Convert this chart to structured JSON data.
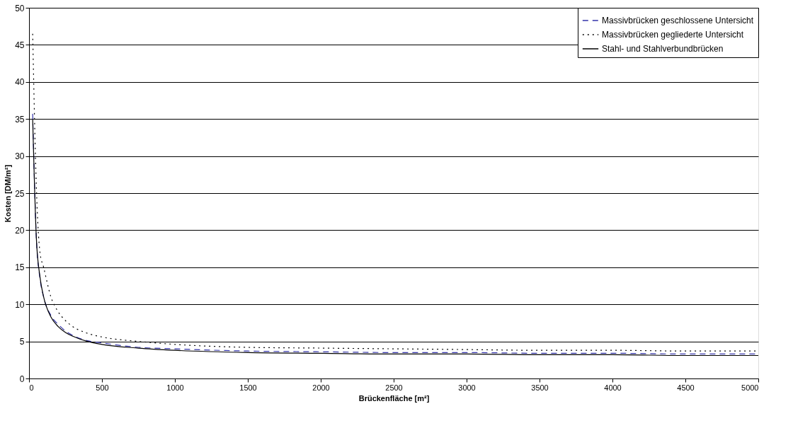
{
  "chart_data": {
    "type": "line",
    "xlabel": "Brückenfläche [m²]",
    "ylabel": "Kosten [DM/m²]",
    "x": [
      25,
      50,
      75,
      100,
      150,
      200,
      250,
      300,
      400,
      500,
      750,
      1000,
      1500,
      2000,
      2500,
      3000,
      3500,
      4000,
      4500,
      5000
    ],
    "series": [
      {
        "name": "Massivbrücken geschlossene Untersicht",
        "color": "#3333aa",
        "line_style": "dashed",
        "values": [
          35.7,
          19,
          13.5,
          11,
          8.5,
          7.3,
          6.4,
          5.8,
          5.1,
          4.8,
          4.2,
          4,
          3.7,
          3.6,
          3.5,
          3.5,
          3.4,
          3.4,
          3.3,
          3.3
        ]
      },
      {
        "name": "Massivbrücken gegliederte Untersicht",
        "color": "#000000",
        "line_style": "dotted",
        "values": [
          46.5,
          26,
          17,
          15,
          11,
          9,
          7.8,
          7,
          6.1,
          5.6,
          5,
          4.6,
          4.2,
          4.1,
          4,
          3.9,
          3.8,
          3.8,
          3.7,
          3.7
        ]
      },
      {
        "name": "Stahl- und Stahlverbundbrücken",
        "color": "#000000",
        "line_style": "solid",
        "values": [
          35,
          19,
          13.7,
          11,
          8.3,
          7,
          6.2,
          5.7,
          5,
          4.6,
          4.1,
          3.8,
          3.5,
          3.4,
          3.3,
          3.3,
          3.2,
          3.2,
          3.1,
          3.1
        ]
      }
    ],
    "xlim": [
      0,
      5000
    ],
    "xticks": [
      0,
      500,
      1000,
      1500,
      2000,
      2500,
      3000,
      3500,
      4000,
      4500,
      5000
    ],
    "ylim": [
      0,
      50
    ],
    "yticks": [
      0,
      5,
      10,
      15,
      20,
      25,
      30,
      35,
      40,
      45,
      50
    ],
    "grid": "y",
    "legend": "top right",
    "marker": "none"
  }
}
